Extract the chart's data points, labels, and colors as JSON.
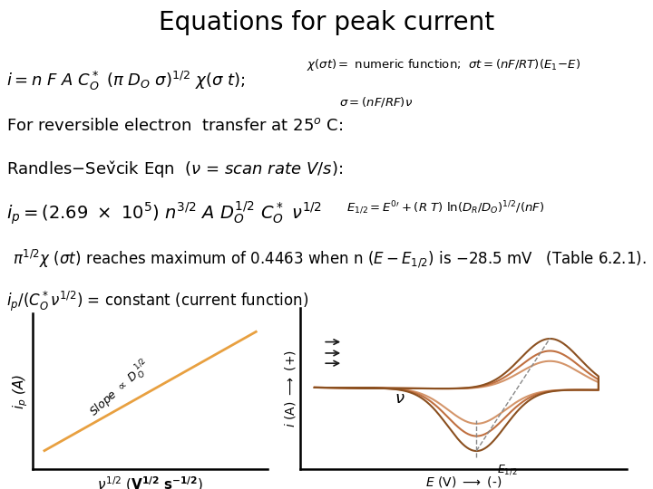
{
  "title": "Equations for peak current",
  "title_fontsize": 20,
  "bg_color": "#ffffff",
  "text_color": "#000000",
  "orange_color": "#E8A040",
  "dashed_color": "#C8A070",
  "arrow_color": "#1a1a1a",
  "red_color": "#cc2200",
  "cv_colors": [
    "#d4956a",
    "#c07040",
    "#8B5020"
  ],
  "cv_amplitudes": [
    0.28,
    0.38,
    0.5
  ],
  "fs_main": 13,
  "fs_small": 9.5,
  "fs_title": 20
}
